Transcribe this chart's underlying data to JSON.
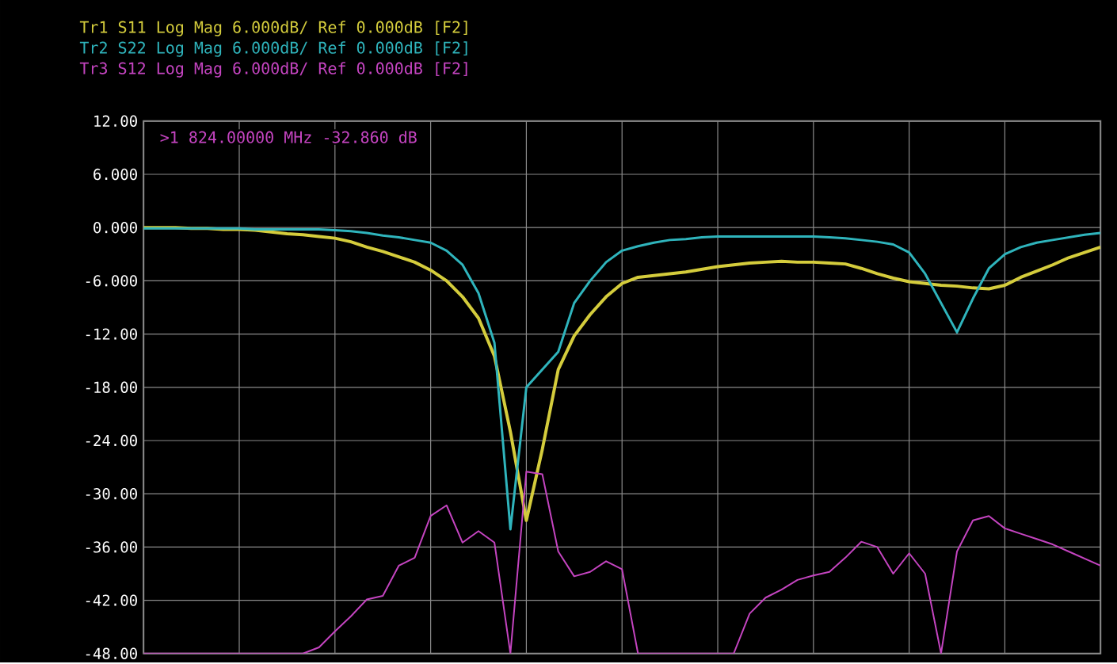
{
  "chart_data": {
    "type": "line",
    "categories": [
      null,
      null,
      null,
      null,
      null,
      null,
      null,
      null,
      null,
      null,
      null,
      null,
      null,
      null,
      null,
      null,
      null,
      null,
      null,
      null,
      null,
      null,
      null,
      null,
      null,
      null,
      null,
      null,
      null,
      null,
      null,
      null,
      null,
      null,
      null,
      null,
      null,
      null,
      null,
      null,
      null,
      null,
      null,
      null,
      null,
      null,
      null,
      null,
      null,
      null,
      null,
      null,
      null,
      null,
      null,
      null,
      null,
      null,
      null,
      null,
      null
    ],
    "series": [
      {
        "name": "Tr1 S11 Log Mag 6.000dB/ Ref 0.000dB [F2]",
        "color": "#d4cc3c",
        "values": [
          0,
          0,
          0,
          -0.1,
          -0.1,
          -0.2,
          -0.2,
          -0.3,
          -0.5,
          -0.7,
          -0.8,
          -1.0,
          -1.2,
          -1.6,
          -2.2,
          -2.7,
          -3.3,
          -3.9,
          -4.8,
          -6.0,
          -7.8,
          -10.2,
          -14.5,
          -23,
          -33,
          -25,
          -16,
          -12.2,
          -9.8,
          -7.8,
          -6.3,
          -5.6,
          -5.4,
          -5.2,
          -5.0,
          -4.7,
          -4.4,
          -4.2,
          -4.0,
          -3.9,
          -3.8,
          -3.9,
          -3.9,
          -4.0,
          -4.1,
          -4.6,
          -5.2,
          -5.7,
          -6.1,
          -6.3,
          -6.5,
          -6.6,
          -6.8,
          -6.9,
          -6.5,
          -5.6,
          -4.9,
          -4.2,
          -3.4,
          -2.8,
          -2.2
        ]
      },
      {
        "name": "Tr2 S22 Log Mag 6.000dB/ Ref 0.000dB [F2]",
        "color": "#2fb4bc",
        "values": [
          -0.1,
          -0.1,
          -0.1,
          -0.1,
          -0.1,
          -0.1,
          -0.1,
          -0.2,
          -0.2,
          -0.2,
          -0.2,
          -0.2,
          -0.3,
          -0.4,
          -0.6,
          -0.9,
          -1.1,
          -1.4,
          -1.7,
          -2.6,
          -4.2,
          -7.4,
          -13,
          -34,
          -18,
          -16,
          -14,
          -8.5,
          -6,
          -3.9,
          -2.6,
          -2.1,
          -1.7,
          -1.4,
          -1.3,
          -1.1,
          -1.0,
          -1.0,
          -1.0,
          -1.0,
          -1.0,
          -1.0,
          -1.0,
          -1.1,
          -1.2,
          -1.4,
          -1.6,
          -1.9,
          -2.8,
          -5.2,
          -8.5,
          -11.8,
          -8,
          -4.6,
          -3.0,
          -2.2,
          -1.7,
          -1.4,
          -1.1,
          -0.8,
          -0.6
        ]
      },
      {
        "name": "Tr3 S12 Log Mag 6.000dB/ Ref 0.000dB [F2]",
        "color": "#c444c0",
        "values": [
          -48,
          -48,
          -48,
          -48,
          -48,
          -48,
          -48,
          -48,
          -48,
          -48,
          -48,
          -47.3,
          -45.5,
          -43.8,
          -41.9,
          -41.5,
          -38.1,
          -37.2,
          -32.5,
          -31.3,
          -35.5,
          -34.2,
          -35.5,
          -48,
          -27.5,
          -27.8,
          -36.5,
          -39.3,
          -38.8,
          -37.6,
          -38.5,
          -48,
          -48,
          -48,
          -48,
          -48,
          -48,
          -48,
          -43.5,
          -41.7,
          -40.8,
          -39.7,
          -39.2,
          -38.8,
          -37.2,
          -35.4,
          -36,
          -39,
          -36.7,
          -39,
          -48,
          -36.5,
          -33,
          -32.5,
          -33.9,
          -34.5,
          -35.1,
          -35.7,
          -36.5,
          -37.3,
          -38.1
        ]
      }
    ],
    "ylim": [
      -48,
      12
    ],
    "yticks": [
      {
        "value": 12,
        "label": "12.00"
      },
      {
        "value": 6,
        "label": "6.000"
      },
      {
        "value": 0,
        "label": "0.000"
      },
      {
        "value": -6,
        "label": "-6.000"
      },
      {
        "value": -12,
        "label": "-12.00"
      },
      {
        "value": -18,
        "label": "-18.00"
      },
      {
        "value": -24,
        "label": "-24.00"
      },
      {
        "value": -30,
        "label": "-30.00"
      },
      {
        "value": -36,
        "label": "-36.00"
      },
      {
        "value": -42,
        "label": "-42.00"
      },
      {
        "value": -48,
        "label": "-48.00"
      }
    ],
    "tick_labels": "y",
    "grid": true,
    "legend": "top left",
    "annotations": [
      ">1  824.00000 MHz -32.860 dB"
    ]
  }
}
